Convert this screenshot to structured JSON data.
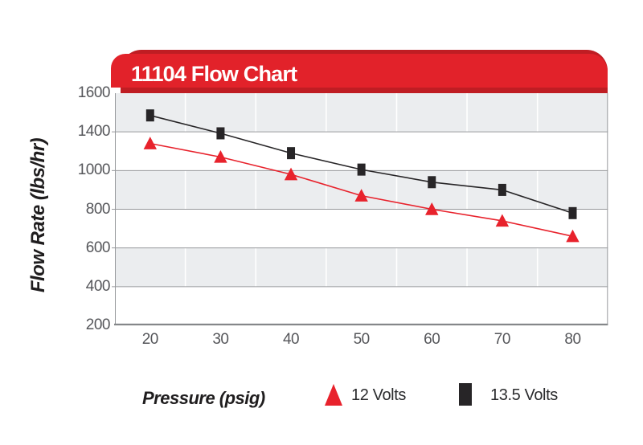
{
  "header": {
    "title": "11104 Flow Chart"
  },
  "chart_data": {
    "type": "line",
    "title": "11104 Flow Chart",
    "xlabel": "Pressure (psig)",
    "ylabel": "Flow Rate (lbs/hr)",
    "categories": [
      "20",
      "30",
      "40",
      "50",
      "60",
      "70",
      "80"
    ],
    "y_tick_labels": [
      "1600",
      "1400",
      "1000",
      "800",
      "600",
      "400",
      "200"
    ],
    "axis_note": "y-axis tick labels as printed skip 1200; gridlines evenly spaced",
    "grid": "alternating gray/white horizontal bands with white vertical category separators",
    "legend_position": "bottom-center",
    "series": [
      {
        "name": "13.5 Volts",
        "marker": "square",
        "color": "#272527",
        "values": [
          1485,
          1385,
          1180,
          1010,
          940,
          900,
          780
        ]
      },
      {
        "name": "12 Volts",
        "marker": "triangle",
        "color": "#e8222c",
        "values": [
          1280,
          1140,
          980,
          870,
          800,
          740,
          660
        ]
      }
    ]
  },
  "legend": {
    "items": [
      {
        "label": "12 Volts",
        "marker": "triangle",
        "color": "#e8222c"
      },
      {
        "label": "13.5 Volts",
        "marker": "square",
        "color": "#272527"
      }
    ]
  },
  "colors": {
    "banner_front": "#e2222a",
    "banner_back": "#bf1d23",
    "band_gray": "#ebedef",
    "grid_line": "#97999c",
    "axis_line": "#85878a",
    "vertical_grid": "#ffffff",
    "tick_text": "#55565a",
    "dark_text": "#1f1d1e",
    "series_red": "#e8222c",
    "series_black": "#272527",
    "title_text": "#ffffff"
  }
}
